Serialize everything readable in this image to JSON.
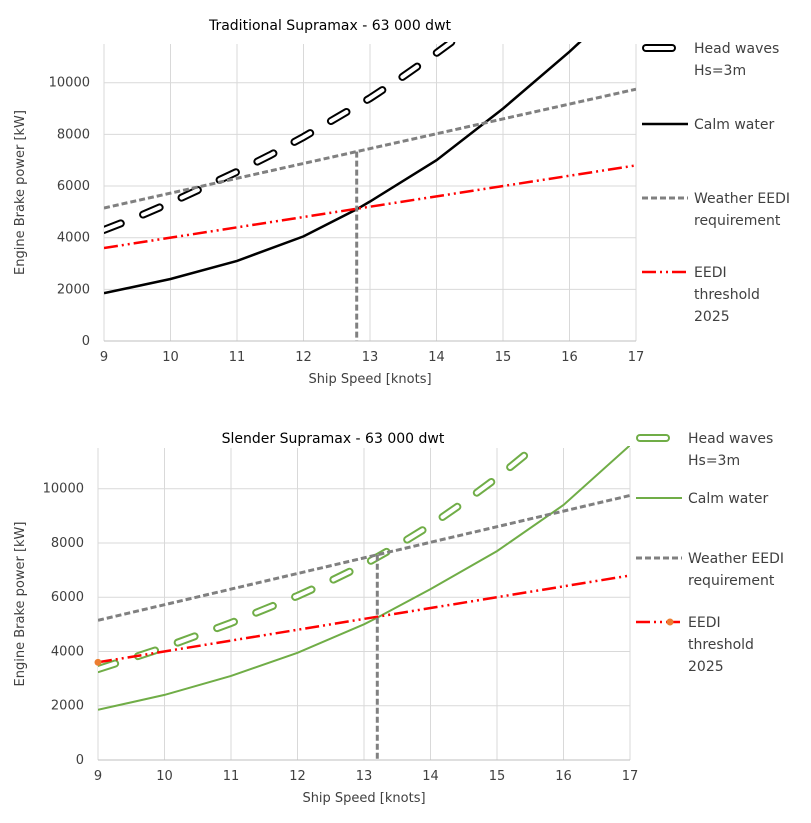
{
  "chart_data": [
    {
      "type": "line",
      "title": "Traditional Supramax  - 63 000 dwt",
      "xlabel": "Ship Speed [knots]",
      "ylabel": "Engine Brake power [kW]",
      "xlim": [
        9,
        17
      ],
      "ylim": [
        0,
        11500
      ],
      "xticks": [
        "9",
        "10",
        "11",
        "12",
        "13",
        "14",
        "15",
        "16",
        "17"
      ],
      "yticks": [
        "0",
        "2000",
        "4000",
        "6000",
        "8000",
        "10000"
      ],
      "grid": true,
      "legend_position": "right",
      "marker_x": 12.8,
      "series": [
        {
          "name": [
            "Head waves",
            "Hs=3m"
          ],
          "style": "outlined-dash",
          "color": "#000000",
          "x": [
            9,
            9.5,
            10,
            10.5,
            11,
            11.5,
            12,
            12.5,
            13,
            13.5,
            14,
            14.5
          ],
          "y": [
            4300,
            4800,
            5350,
            5950,
            6550,
            7200,
            7900,
            8650,
            9400,
            10250,
            11150,
            12100
          ]
        },
        {
          "name": [
            "Calm water"
          ],
          "style": "solid",
          "color": "#000000",
          "x": [
            9,
            10,
            11,
            12,
            12.8,
            13,
            14,
            15,
            16,
            16.5
          ],
          "y": [
            1850,
            2400,
            3100,
            4050,
            5100,
            5400,
            7000,
            9000,
            11200,
            12400
          ]
        },
        {
          "name": [
            "Weather EEDI",
            "requirement"
          ],
          "style": "dashed",
          "color": "#808080",
          "x": [
            9,
            17
          ],
          "y": [
            5150,
            9750
          ]
        },
        {
          "name": [
            "EEDI",
            "threshold",
            "2025"
          ],
          "style": "dash-dot",
          "color": "#ff0000",
          "x": [
            9,
            17
          ],
          "y": [
            3600,
            6800
          ]
        }
      ]
    },
    {
      "type": "line",
      "title": "Slender Supramax - 63 000 dwt",
      "xlabel": "Ship Speed [knots]",
      "ylabel": "Engine Brake power [kW]",
      "xlim": [
        9,
        17
      ],
      "ylim": [
        0,
        11500
      ],
      "xticks": [
        "9",
        "10",
        "11",
        "12",
        "13",
        "14",
        "15",
        "16",
        "17"
      ],
      "yticks": [
        "0",
        "2000",
        "4000",
        "6000",
        "8000",
        "10000"
      ],
      "grid": true,
      "legend_position": "right",
      "marker_x": 13.2,
      "series": [
        {
          "name": [
            "Head waves",
            "Hs=3m"
          ],
          "style": "outlined-dash",
          "color": "#70ad47",
          "x": [
            9,
            9.5,
            10,
            10.5,
            11,
            11.5,
            12,
            12.5,
            13,
            13.5,
            14,
            14.5,
            15,
            15.5,
            15.9
          ],
          "y": [
            3350,
            3750,
            4150,
            4600,
            5050,
            5550,
            6050,
            6600,
            7200,
            7900,
            8650,
            9500,
            10400,
            11400,
            12200
          ]
        },
        {
          "name": [
            "Calm water"
          ],
          "style": "solid",
          "color": "#70ad47",
          "x": [
            9,
            10,
            11,
            12,
            13,
            13.2,
            14,
            15,
            16,
            17
          ],
          "y": [
            1850,
            2400,
            3100,
            3950,
            5000,
            5250,
            6300,
            7700,
            9400,
            11600
          ]
        },
        {
          "name": [
            "Weather EEDI",
            "requirement"
          ],
          "style": "dashed",
          "color": "#808080",
          "x": [
            9,
            17
          ],
          "y": [
            5150,
            9750
          ]
        },
        {
          "name": [
            "EEDI",
            "threshold",
            "2025"
          ],
          "style": "dash-dot",
          "color": "#ff0000",
          "point_color": "#ed7d31",
          "x": [
            9,
            17
          ],
          "y": [
            3600,
            6800
          ]
        }
      ]
    }
  ]
}
